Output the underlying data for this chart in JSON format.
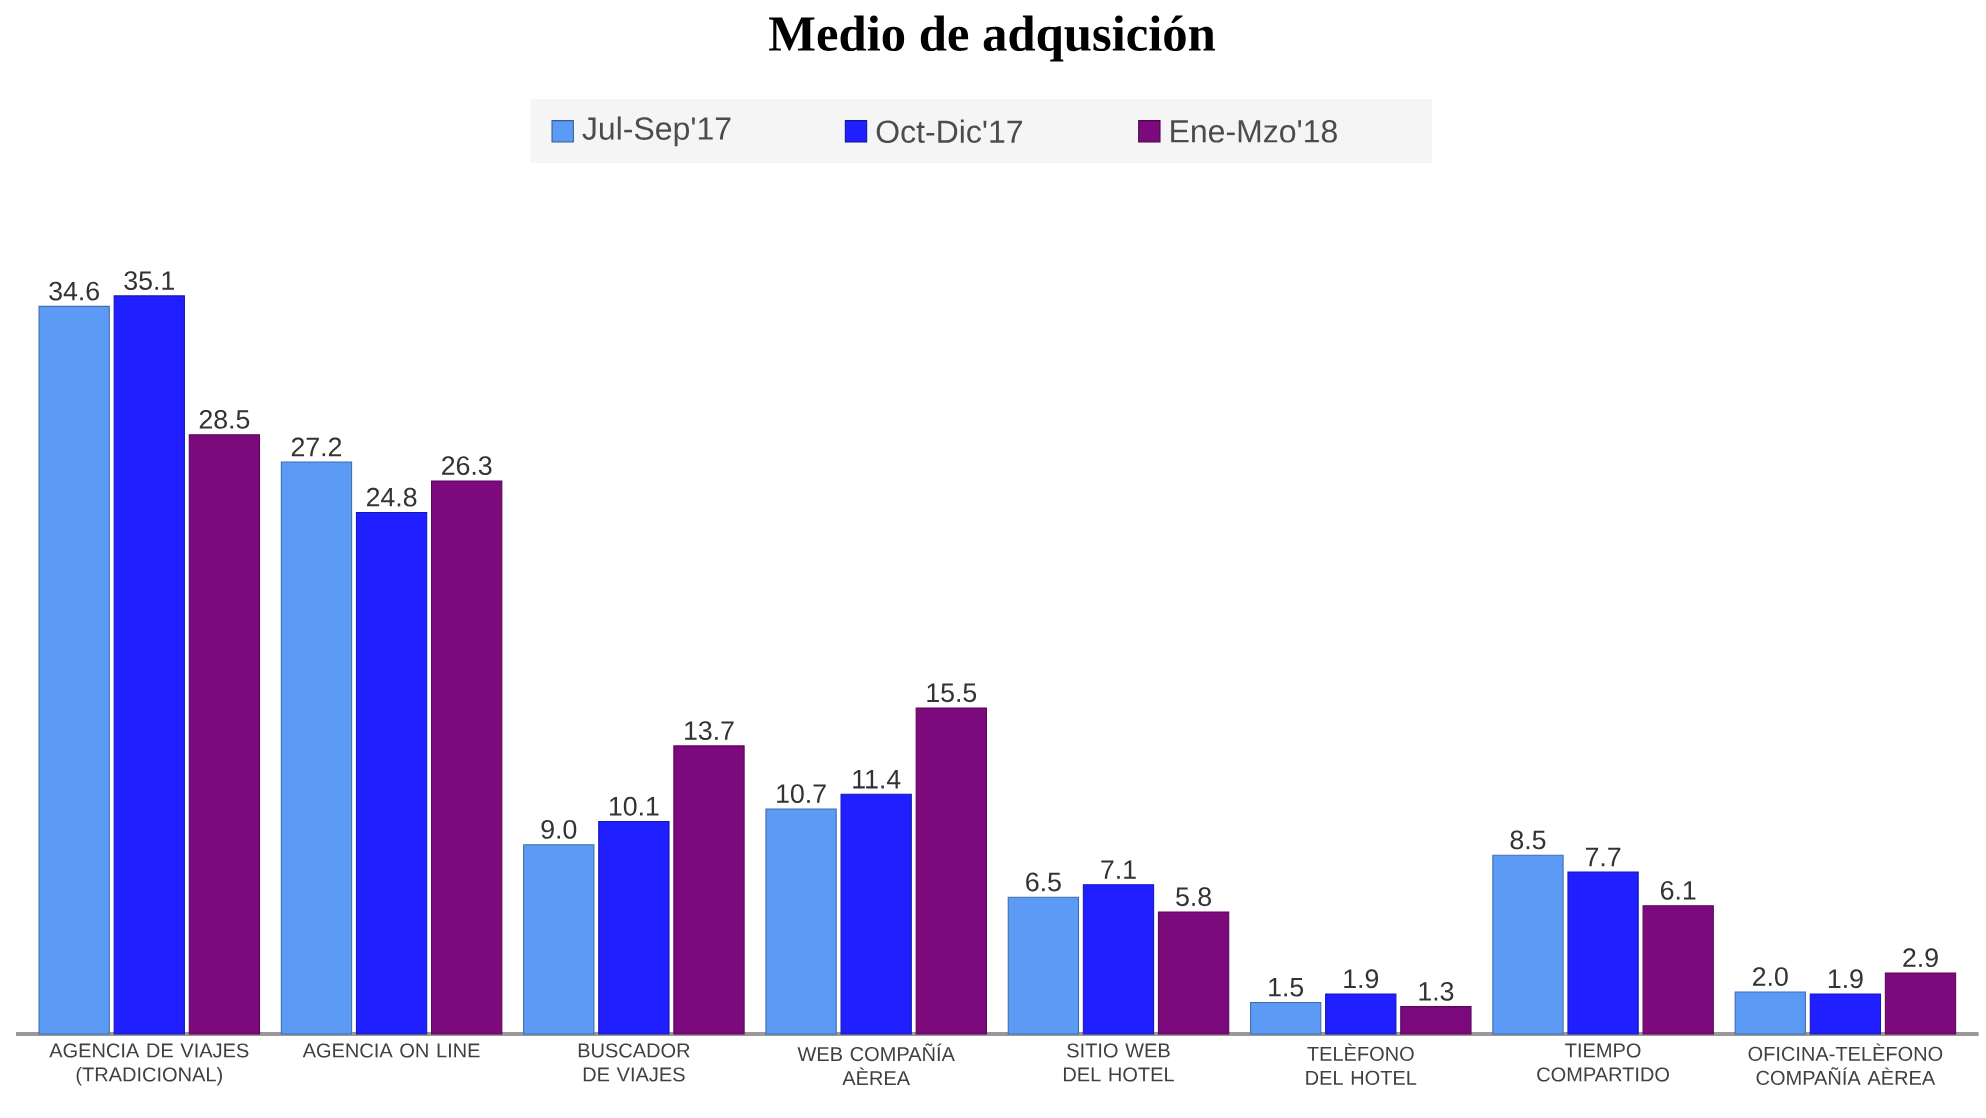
{
  "chart_data": {
    "type": "bar",
    "title": "Medio de adqusición",
    "categories": [
      "AGENCIA DE VIAJES (TRADICIONAL)",
      "AGENCIA ON LINE",
      "BUSCADOR DE VIAJES",
      "WEB COMPAÑÍA AÈREA",
      "SITIO WEB DEL HOTEL",
      "TELÈFONO DEL HOTEL",
      "TIEMPO COMPARTIDO",
      "OFICINA-TELÈFONO COMPAÑÍA AÈREA"
    ],
    "series": [
      {
        "name": "Jul-Sep'17",
        "color": "#5b9bf5",
        "values": [
          34.6,
          27.2,
          9.0,
          10.7,
          6.5,
          1.5,
          8.5,
          2.0
        ],
        "value_labels": [
          "34.6",
          "27.2",
          "9.0",
          "10.7",
          "6.5",
          "1.5",
          "8.5",
          "2.0"
        ]
      },
      {
        "name": "Oct-Dic'17",
        "color": "#1f1fff",
        "values": [
          35.1,
          24.8,
          10.1,
          11.4,
          7.1,
          1.9,
          7.7,
          1.9
        ],
        "value_labels": [
          "35.1",
          "24.8",
          "10.1",
          "11.4",
          "7.1",
          "1.9",
          "7.7",
          "1.9"
        ]
      },
      {
        "name": "Ene-Mzo'18",
        "color": "#7d0a7d",
        "values": [
          28.5,
          26.3,
          13.7,
          15.5,
          5.8,
          1.3,
          6.1,
          2.9
        ],
        "value_labels": [
          "28.5",
          "26.3",
          "13.7",
          "15.5",
          "5.8",
          "1.3",
          "6.1",
          "2.9"
        ]
      }
    ],
    "legend": "top"
  }
}
